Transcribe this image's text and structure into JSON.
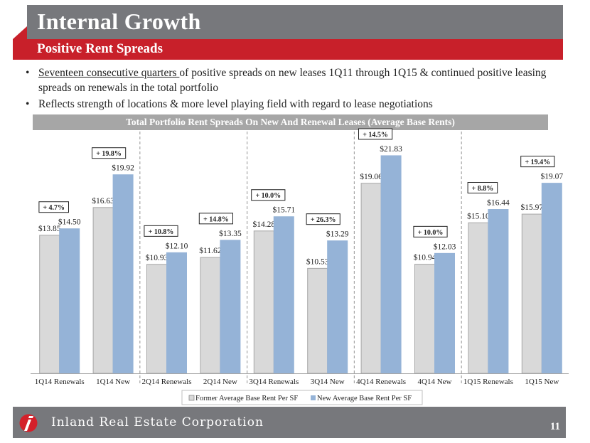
{
  "header": {
    "title": "Internal Growth",
    "subtitle": "Positive Rent Spreads"
  },
  "bullets": [
    {
      "underlined": "Seventeen consecutive quarters ",
      "text": "of positive spreads on new leases 1Q11 through 1Q15 & continued positive leasing spreads on renewals in the total portfolio"
    },
    {
      "underlined": "",
      "text": "Reflects strength of locations & more level playing field with regard to lease negotiations"
    }
  ],
  "colors": {
    "former": "#d9d9d9",
    "new": "#95b3d7",
    "brand_red": "#c8202a",
    "brand_gray": "#77787c"
  },
  "chart_data": {
    "type": "bar",
    "title": "Total Portfolio Rent Spreads On New And Renewal Leases (Average Base Rents)",
    "xlabel": "",
    "ylabel": "",
    "ylim": [
      0,
      22
    ],
    "grid": false,
    "legend_position": "bottom",
    "categories": [
      "1Q14 Renewals",
      "1Q14 New",
      "2Q14 Renewals",
      "2Q14 New",
      "3Q14 Renewals",
      "3Q14 New",
      "4Q14 Renewals",
      "4Q14 New",
      "1Q15 Renewals",
      "1Q15 New"
    ],
    "series": [
      {
        "name": "Former Average Base Rent Per SF",
        "values": [
          13.85,
          16.63,
          10.93,
          11.62,
          14.28,
          10.53,
          19.06,
          10.94,
          15.1,
          15.97
        ],
        "labels": [
          "$13.85",
          "$16.63",
          "$10.93",
          "$11.62",
          "$14.28",
          "$10.53",
          "$19.06",
          "$10.94",
          "$15.10",
          "$15.97"
        ]
      },
      {
        "name": "New Average Base Rent Per SF",
        "values": [
          14.5,
          19.92,
          12.1,
          13.35,
          15.71,
          13.29,
          21.83,
          12.03,
          16.44,
          19.07
        ],
        "labels": [
          "$14.50",
          "$19.92",
          "$12.10",
          "$13.35",
          "$15.71",
          "$13.29",
          "$21.83",
          "$12.03",
          "$16.44",
          "$19.07"
        ]
      }
    ],
    "annotations": [
      "+ 4.7%",
      "+ 19.8%",
      "+ 10.8%",
      "+ 14.8%",
      "+ 10.0%",
      "+ 26.3%",
      "+ 14.5%",
      "+ 10.0%",
      "+ 8.8%",
      "+ 19.4%"
    ],
    "quarter_separators": true
  },
  "footer": {
    "company": "Inland Real Estate Corporation",
    "page_number": "11"
  }
}
